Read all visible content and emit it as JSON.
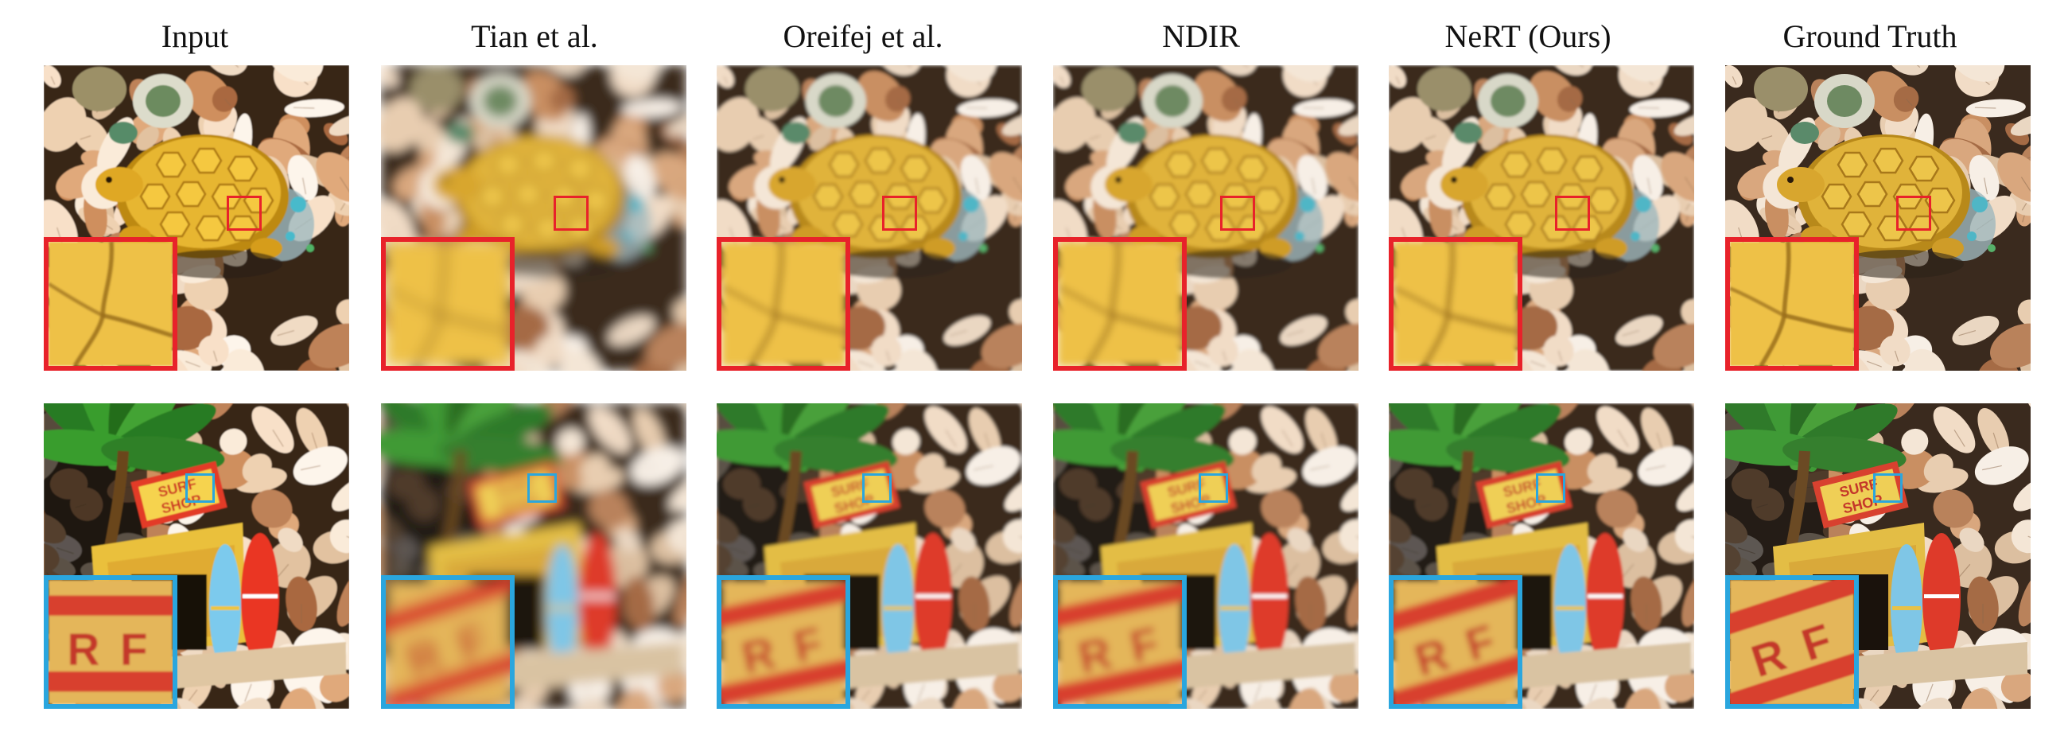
{
  "figure": {
    "columns": [
      {
        "label": "Input",
        "quality": "input"
      },
      {
        "label": "Tian et al.",
        "quality": "blurry"
      },
      {
        "label": "Oreifej et al.",
        "quality": "soft"
      },
      {
        "label": "NDIR",
        "quality": "soft"
      },
      {
        "label": "NeRT (Ours)",
        "quality": "sharp"
      },
      {
        "label": "Ground Truth",
        "quality": "gt"
      }
    ],
    "rows": [
      {
        "scene": "turtle-on-seashells",
        "highlight_color": "#e8222a"
      },
      {
        "scene": "beach-hut-with-surfboards-on-seashells",
        "highlight_color": "#2aa6de"
      }
    ]
  }
}
